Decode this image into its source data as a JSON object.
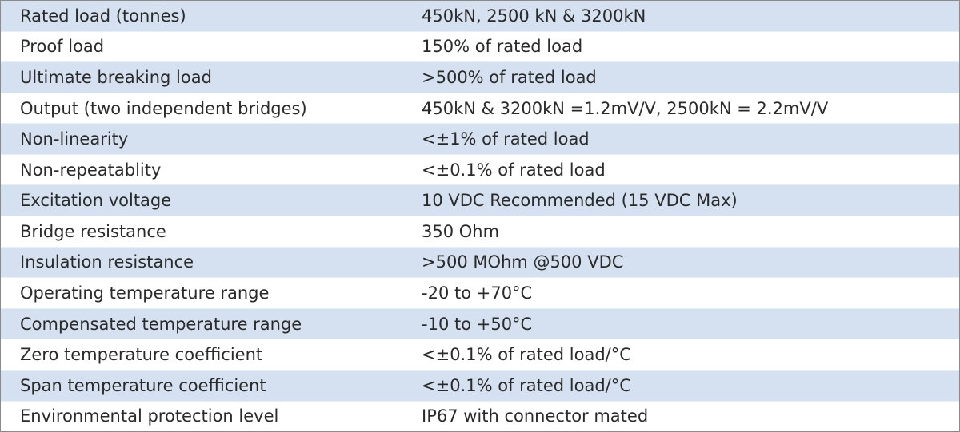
{
  "table": {
    "rows": [
      [
        "Rated load (tonnes)",
        "450kN, 2500 kN & 3200kN"
      ],
      [
        "Proof load",
        "150% of rated load"
      ],
      [
        "Ultimate breaking load",
        ">500% of rated load"
      ],
      [
        "Output (two independent bridges)",
        "450kN & 3200kN =1.2mV/V, 2500kN = 2.2mV/V"
      ],
      [
        "Non-linearity",
        "<±1% of rated load"
      ],
      [
        "Non-repeatablity",
        "<±0.1% of rated load"
      ],
      [
        "Excitation voltage",
        "10 VDC Recommended (15 VDC Max)"
      ],
      [
        "Bridge resistance",
        "350 Ohm"
      ],
      [
        "Insulation resistance",
        ">500 MOhm @500 VDC"
      ],
      [
        "Operating temperature range",
        "-20 to +70°C"
      ],
      [
        "Compensated temperature range",
        "-10 to +50°C"
      ],
      [
        "Zero temperature coefficient",
        "<±0.1% of rated load/°C"
      ],
      [
        "Span temperature coefficient",
        "<±0.1% of rated load/°C"
      ],
      [
        "Environmental protection level",
        "IP67 with connector mated"
      ]
    ]
  }
}
